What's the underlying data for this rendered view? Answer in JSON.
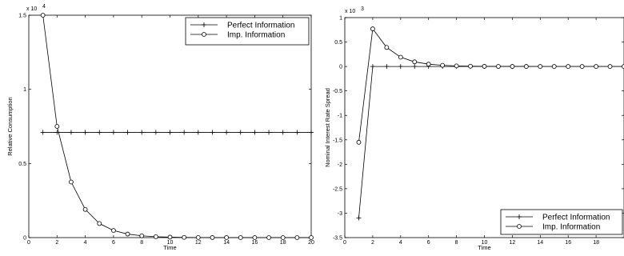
{
  "chart_data": [
    {
      "type": "line",
      "xlabel": "Time",
      "ylabel": "Relative Consumption",
      "exponent_label": "x 10",
      "exponent_power": "4",
      "xlim": [
        0,
        20
      ],
      "ylim": [
        0,
        1.5
      ],
      "xticks": [
        0,
        2,
        4,
        6,
        8,
        10,
        12,
        14,
        16,
        18,
        20
      ],
      "yticks": [
        0,
        0.5,
        1,
        1.5
      ],
      "xtick_labels": [
        "0",
        "2",
        "4",
        "6",
        "8",
        "10",
        "12",
        "14",
        "16",
        "18",
        "20"
      ],
      "ytick_labels": [
        "0",
        "0.5",
        "1",
        "1.5"
      ],
      "x": [
        1,
        2,
        3,
        4,
        5,
        6,
        7,
        8,
        9,
        10,
        11,
        12,
        13,
        14,
        15,
        16,
        17,
        18,
        19,
        20
      ],
      "series": [
        {
          "name": "Perfect Information",
          "marker": "plus",
          "values": [
            0.71,
            0.71,
            0.71,
            0.71,
            0.71,
            0.71,
            0.71,
            0.71,
            0.71,
            0.71,
            0.71,
            0.71,
            0.71,
            0.71,
            0.71,
            0.71,
            0.71,
            0.71,
            0.71,
            0.71
          ]
        },
        {
          "name": "Imp. Information",
          "marker": "circle",
          "values": [
            1.5,
            0.75,
            0.375,
            0.19,
            0.095,
            0.048,
            0.024,
            0.012,
            0.006,
            0.003,
            0.0015,
            0.0007,
            0.0004,
            0.0002,
            0.0001,
            0,
            0,
            0,
            0,
            0
          ]
        }
      ],
      "legend": "top-right",
      "grid": false
    },
    {
      "type": "line",
      "xlabel": "Time",
      "ylabel": "Nominal Interest Rate Spread",
      "exponent_label": "x 10",
      "exponent_power": "3",
      "xlim": [
        0,
        20
      ],
      "ylim": [
        -3.5,
        1
      ],
      "xticks": [
        0,
        2,
        4,
        6,
        8,
        10,
        12,
        14,
        16,
        18
      ],
      "yticks": [
        -3.5,
        -3,
        -2.5,
        -2,
        -1.5,
        -1,
        -0.5,
        0,
        0.5,
        1
      ],
      "xtick_labels": [
        "0",
        "2",
        "4",
        "6",
        "8",
        "10",
        "12",
        "14",
        "16",
        "18"
      ],
      "ytick_labels": [
        "-3.5",
        "-3",
        "-2.5",
        "-2",
        "-1.5",
        "-1",
        "-0.5",
        "0",
        "0.5",
        "1"
      ],
      "x": [
        1,
        2,
        3,
        4,
        5,
        6,
        7,
        8,
        9,
        10,
        11,
        12,
        13,
        14,
        15,
        16,
        17,
        18,
        19,
        20
      ],
      "series": [
        {
          "name": "Perfect Information",
          "marker": "plus",
          "values": [
            -3.1,
            0,
            0,
            0,
            0,
            0,
            0,
            0,
            0,
            0,
            0,
            0,
            0,
            0,
            0,
            0,
            0,
            0,
            0,
            0
          ]
        },
        {
          "name": "Imp. Information",
          "marker": "circle",
          "values": [
            -1.55,
            0.77,
            0.39,
            0.19,
            0.095,
            0.048,
            0.024,
            0.012,
            0.006,
            0.003,
            0.0015,
            0.0007,
            0.0004,
            0.0002,
            0.0001,
            0,
            0,
            0,
            0,
            0
          ]
        }
      ],
      "legend": "bottom-right",
      "grid": false
    }
  ]
}
